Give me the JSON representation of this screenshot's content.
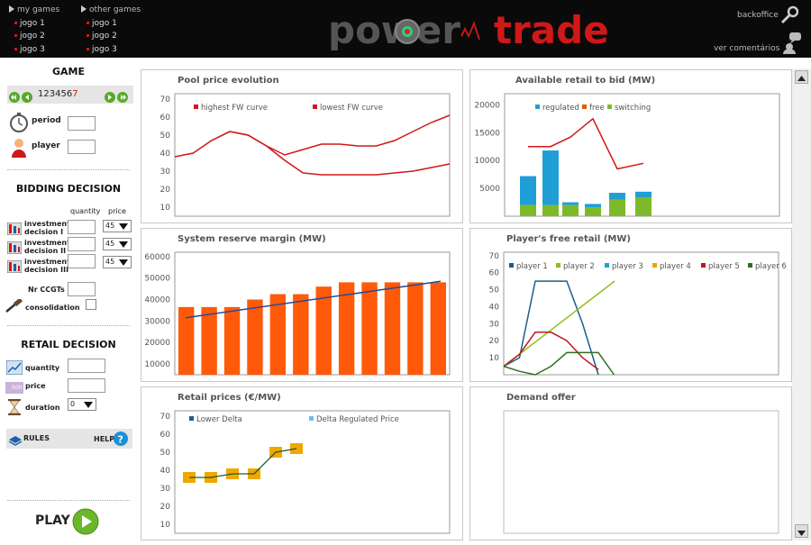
{
  "topbar": {
    "my_games_label": "my games",
    "my_games": [
      "jogo 1",
      "jogo 2",
      "jogo 3"
    ],
    "other_games_label": "other games",
    "other_games": [
      "jogo 1",
      "jogo 2",
      "jogo 3"
    ],
    "logo": {
      "part1": "power",
      "part2": "trade"
    },
    "backoffice_label": "backoffice",
    "comments_label": "ver comentários"
  },
  "left": {
    "game_title": "GAME",
    "rounds": [
      "1",
      "2",
      "3",
      "4",
      "5",
      "6",
      "7"
    ],
    "current_round": "7",
    "period_label": "period",
    "player_label": "player",
    "bidding_title": "BIDDING DECISION",
    "quantity_header": "quantity",
    "price_header": "price",
    "investments": [
      {
        "label1": "investment",
        "label2": "decision I",
        "price": "45"
      },
      {
        "label1": "investment",
        "label2": "decision II",
        "price": "45"
      },
      {
        "label1": "investment",
        "label2": "decision III",
        "price": "45"
      }
    ],
    "nr_ccgts_label": "Nr CCGTs",
    "consolidation_label": "consolidation",
    "retail_title": "RETAIL DECISION",
    "quantity_label": "quantity",
    "price_label": "price",
    "price_icon_text": "500",
    "duration_label": "duration",
    "duration_value": "0",
    "rules_label": "RULES",
    "help_label": "HELP",
    "play_label": "PLAY"
  },
  "charts": {
    "pool": {
      "title": "Pool price evolution",
      "yticks": [
        "70",
        "60",
        "50",
        "40",
        "30",
        "20",
        "10"
      ],
      "legend": [
        "highest FW curve",
        "lowest FW curve"
      ]
    },
    "retail_bid": {
      "title": "Available retail to bid (MW)",
      "yticks": [
        "20000",
        "15000",
        "10000",
        "5000"
      ],
      "legend": [
        "regulated",
        "free",
        "switching"
      ]
    },
    "reserve": {
      "title": "System reserve margin (MW)",
      "yticks": [
        "60000",
        "50000",
        "40000",
        "30000",
        "20000",
        "10000"
      ]
    },
    "free_retail": {
      "title": "Player's free retail (MW)",
      "yticks": [
        "70",
        "60",
        "50",
        "40",
        "30",
        "20",
        "10"
      ],
      "legend": [
        "player 1",
        "player 2",
        "player 3",
        "player 4",
        "player 5",
        "player 6"
      ]
    },
    "retail_prices": {
      "title": "Retail prices (€/MW)",
      "yticks": [
        "70",
        "60",
        "50",
        "40",
        "30",
        "20",
        "10"
      ],
      "legend": [
        "Lower Delta",
        "Delta Regulated Price"
      ]
    },
    "demand": {
      "title": "Demand offer"
    }
  },
  "colors": {
    "accent_red": "#d01818",
    "bar_orange": "#ff5a0a",
    "bar_blue": "#1f9fd6",
    "bar_green": "#7dba2a",
    "play_green": "#6ab72a"
  },
  "chart_data": [
    {
      "type": "line",
      "title": "Pool price evolution",
      "x": [
        1,
        2,
        3,
        4,
        5,
        6,
        7,
        8,
        9,
        10,
        11,
        12,
        13,
        14,
        15,
        16
      ],
      "series": [
        {
          "name": "highest FW curve",
          "values": [
            38,
            40,
            47,
            52,
            50,
            44,
            39,
            42,
            45,
            45,
            44,
            44,
            47,
            52,
            57,
            61
          ]
        },
        {
          "name": "lowest FW curve",
          "values": [
            null,
            null,
            47,
            52,
            50,
            44,
            36,
            29,
            28,
            28,
            28,
            28,
            29,
            30,
            32,
            34
          ]
        }
      ],
      "ylim": [
        0,
        70
      ]
    },
    {
      "type": "bar",
      "title": "Available retail to bid (MW)",
      "categories": [
        "1",
        "2",
        "3",
        "4",
        "5",
        "6"
      ],
      "series": [
        {
          "name": "regulated",
          "values": [
            5200,
            9800,
            500,
            600,
            1200,
            1000
          ]
        },
        {
          "name": "free",
          "values": [
            2000,
            2000,
            2000,
            1600,
            3000,
            3400
          ]
        },
        {
          "name": "switching",
          "values": [
            0,
            0,
            0,
            0,
            0,
            0
          ]
        }
      ],
      "line": [
        12500,
        12500,
        14200,
        17500,
        8500,
        9500
      ],
      "ylim": [
        0,
        20000
      ]
    },
    {
      "type": "bar",
      "title": "System reserve margin (MW)",
      "categories": [
        "1",
        "2",
        "3",
        "4",
        "5",
        "6",
        "7",
        "8",
        "9",
        "10",
        "11",
        "12"
      ],
      "values": [
        36500,
        36500,
        36500,
        40000,
        42500,
        42500,
        46000,
        48000,
        48000,
        48000,
        48000,
        48000
      ],
      "trend": [
        31500,
        48500
      ],
      "ylim": [
        0,
        60000
      ]
    },
    {
      "type": "line",
      "title": "Player's free retail (MW)",
      "x": [
        1,
        2,
        3,
        4,
        5,
        6,
        7,
        8
      ],
      "series": [
        {
          "name": "player 1",
          "values": [
            5,
            10,
            55,
            55,
            55,
            30,
            0,
            null
          ]
        },
        {
          "name": "player 2",
          "values": [
            5,
            null,
            null,
            null,
            null,
            null,
            null,
            55
          ]
        },
        {
          "name": "player 3",
          "values": [
            null,
            null,
            null,
            null,
            null,
            null,
            null,
            null
          ]
        },
        {
          "name": "player 4",
          "values": [
            null,
            null,
            null,
            null,
            null,
            null,
            null,
            null
          ]
        },
        {
          "name": "player 5",
          "values": [
            5,
            12,
            25,
            25,
            20,
            10,
            3,
            null
          ]
        },
        {
          "name": "player 6",
          "values": [
            5,
            2,
            0,
            5,
            13,
            13,
            13,
            0
          ]
        }
      ],
      "ylim": [
        0,
        70
      ]
    },
    {
      "type": "line",
      "title": "Retail prices (€/MW)",
      "categories": [
        "1",
        "2",
        "3",
        "4",
        "5",
        "6"
      ],
      "series": [
        {
          "name": "Lower Delta",
          "values": [
            36,
            36,
            38,
            38,
            50,
            52
          ]
        },
        {
          "name": "Delta Regulated Price",
          "values": [
            36,
            36,
            38,
            38,
            50,
            52
          ]
        }
      ],
      "ylim": [
        0,
        70
      ]
    },
    {
      "type": "line",
      "title": "Demand offer",
      "series": []
    }
  ]
}
